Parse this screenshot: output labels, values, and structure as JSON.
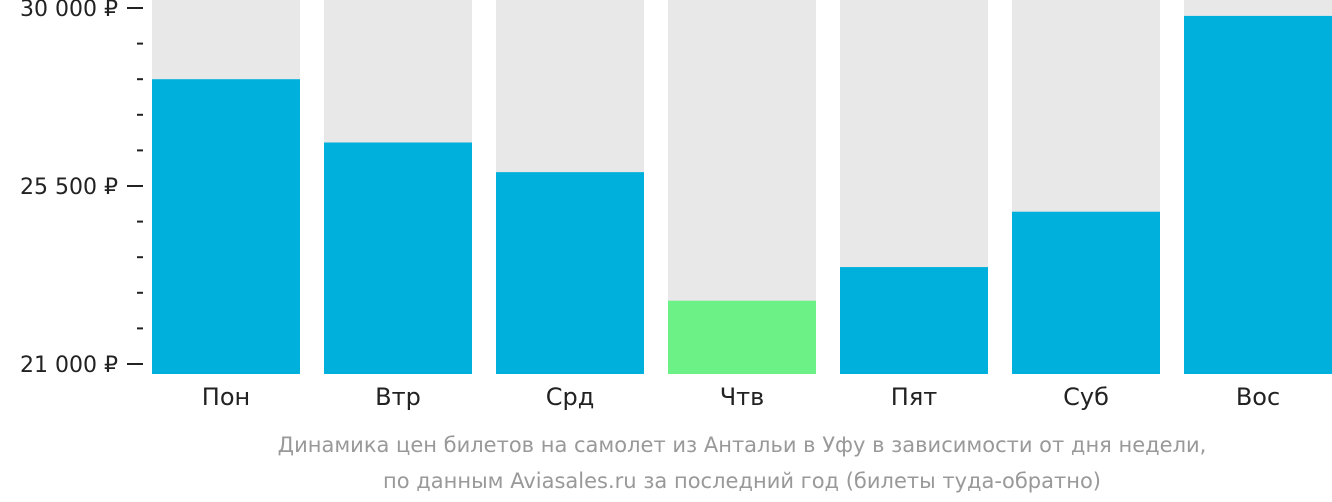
{
  "chart_data": {
    "type": "bar",
    "categories": [
      "Пон",
      "Втр",
      "Срд",
      "Чтв",
      "Пят",
      "Суб",
      "Вос"
    ],
    "values": [
      28200,
      26600,
      25850,
      22600,
      23450,
      24850,
      29800
    ],
    "ylim": [
      21000,
      30000
    ],
    "yticks": [
      {
        "value": 30000,
        "label": "30 000 ₽"
      },
      {
        "value": 25500,
        "label": "25 500 ₽"
      },
      {
        "value": 21000,
        "label": "21 000 ₽"
      }
    ],
    "highlight_index": 3,
    "colors": {
      "bar": "#00b0dc",
      "highlight": "#6cf186",
      "background_column": "#e8e8e8"
    },
    "grid": false,
    "legend": "none"
  },
  "caption": {
    "line1": "Динамика цен билетов на самолет из Антальи в Уфу в зависимости от дня недели,",
    "line2": "по данным Aviasales.ru за последний год (билеты туда-обратно)"
  }
}
